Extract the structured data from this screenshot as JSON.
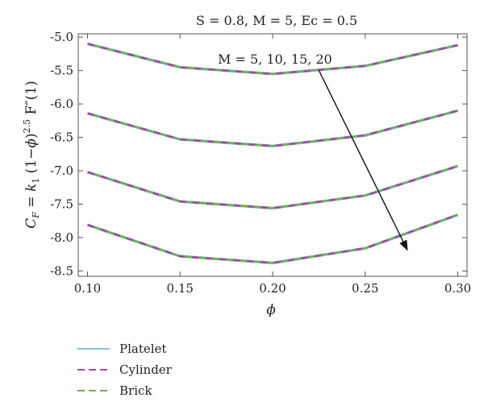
{
  "chart_data": {
    "type": "line",
    "title": "S = 0.8, M = 5, Ec = 0.5",
    "xlabel": "ϕ",
    "ylabel": "C_F = k_1 (1−ϕ)^2.5 F″(1)",
    "annotation": "M = 5, 10, 15, 20",
    "x": [
      0.1,
      0.15,
      0.2,
      0.25,
      0.3
    ],
    "xlim": [
      0.095,
      0.305
    ],
    "ylim": [
      -8.58,
      -4.95
    ],
    "xticks": [
      "0.10",
      "0.15",
      "0.20",
      "0.25",
      "0.30"
    ],
    "yticks": [
      "-5.0",
      "-5.5",
      "-6.0",
      "-6.5",
      "-7.0",
      "-7.5",
      "-8.0",
      "-8.5"
    ],
    "ytick_values": [
      -5.0,
      -5.5,
      -6.0,
      -6.5,
      -7.0,
      -7.5,
      -8.0,
      -8.5
    ],
    "grid": false,
    "legend_position": "bottom-left",
    "curves": [
      [
        -5.1,
        -5.45,
        -5.55,
        -5.43,
        -5.12
      ],
      [
        -6.14,
        -6.53,
        -6.63,
        -6.47,
        -6.1
      ],
      [
        -7.02,
        -7.46,
        -7.56,
        -7.37,
        -6.93
      ],
      [
        -7.81,
        -8.28,
        -8.38,
        -8.16,
        -7.66
      ]
    ],
    "series": [
      {
        "name": "Platelet",
        "color": "#7fc4e3",
        "dash": "solid"
      },
      {
        "name": "Cylinder",
        "color": "#a5489b",
        "dash": "dashed"
      },
      {
        "name": "Brick",
        "color": "#6db33f",
        "dash": "dashed"
      }
    ],
    "arrow": {
      "from": [
        0.225,
        -5.5
      ],
      "to": [
        0.273,
        -8.2
      ]
    }
  }
}
